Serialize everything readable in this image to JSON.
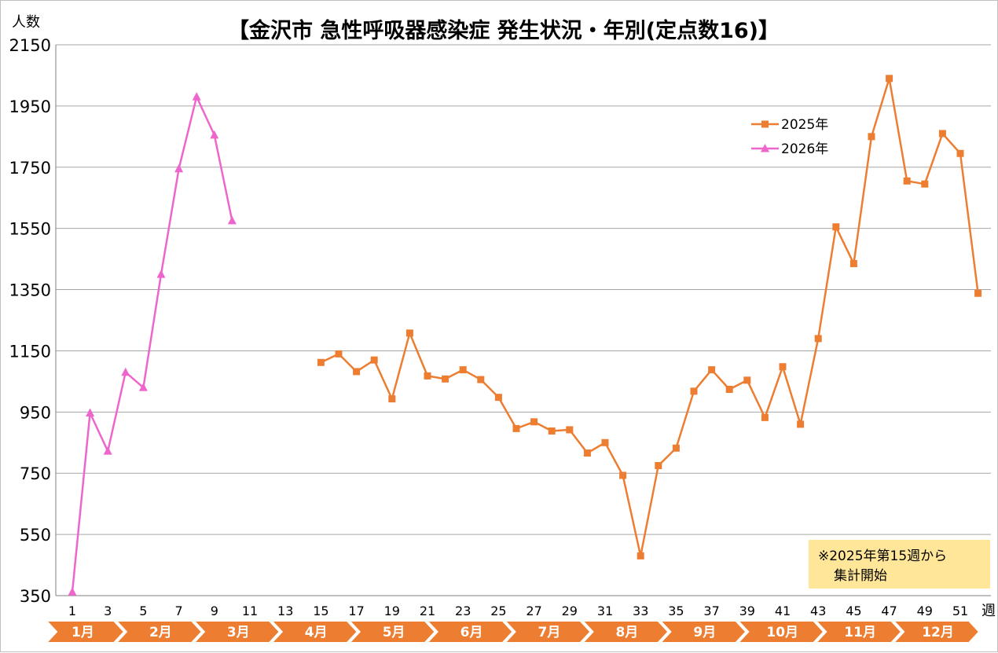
{
  "chart_data": {
    "type": "line",
    "title": "【金沢市 急性呼吸器感染症 発生状況・年別(定点数16)】",
    "ylabel": "人数",
    "xlabel": "週",
    "ylim": [
      350,
      2150
    ],
    "yticks": [
      350,
      550,
      750,
      950,
      1150,
      1350,
      1550,
      1750,
      1950,
      2150
    ],
    "xlim": [
      1,
      52
    ],
    "xticks": [
      1,
      3,
      5,
      7,
      9,
      11,
      13,
      15,
      17,
      19,
      21,
      23,
      25,
      27,
      29,
      31,
      33,
      35,
      37,
      39,
      41,
      43,
      45,
      47,
      49,
      51
    ],
    "grid": true,
    "legend_position": "top-right",
    "series": [
      {
        "name": "2025年",
        "color": "#ED7D31",
        "marker": "square",
        "x": [
          15,
          16,
          17,
          18,
          19,
          20,
          21,
          22,
          23,
          24,
          25,
          26,
          27,
          28,
          29,
          30,
          31,
          32,
          33,
          34,
          35,
          36,
          37,
          38,
          39,
          40,
          41,
          42,
          43,
          44,
          45,
          46,
          47,
          48,
          49,
          50,
          51,
          52
        ],
        "y": [
          1112,
          1140,
          1082,
          1120,
          993,
          1208,
          1068,
          1058,
          1088,
          1056,
          998,
          896,
          918,
          888,
          892,
          816,
          850,
          743,
          480,
          775,
          832,
          1018,
          1088,
          1024,
          1054,
          932,
          1098,
          910,
          1190,
          1555,
          1435,
          1850,
          2040,
          1705,
          1695,
          1860,
          1795,
          1338
        ]
      },
      {
        "name": "2026年",
        "color": "#EE66CC",
        "marker": "triangle",
        "x": [
          1,
          2,
          3,
          4,
          5,
          6,
          7,
          8,
          9,
          10
        ],
        "y": [
          362,
          947,
          822,
          1080,
          1030,
          1400,
          1745,
          1980,
          1855,
          1575
        ]
      }
    ],
    "months": [
      "1月",
      "2月",
      "3月",
      "4月",
      "5月",
      "6月",
      "7月",
      "8月",
      "9月",
      "10月",
      "11月",
      "12月"
    ],
    "note": [
      "※2025年第15週から",
      "集計開始"
    ]
  }
}
